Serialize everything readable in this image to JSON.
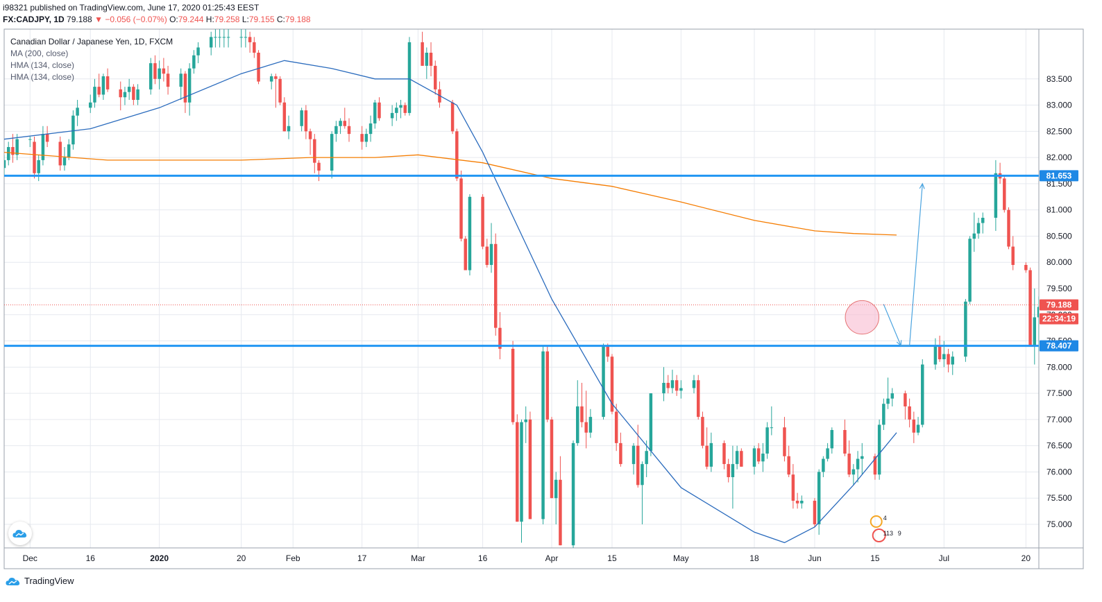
{
  "header": {
    "published_line": "i98321 published on TradingView.com, June 17, 2020 01:25:43 EEST",
    "symbol": "FX:CADJPY, 1D",
    "last": "79.188",
    "change": "−0.056 (−0.07%)",
    "open_label": "O:",
    "open": "79.244",
    "high_label": "H:",
    "high": "79.258",
    "low_label": "L:",
    "low": "79.155",
    "close_label": "C:",
    "close": "79.188"
  },
  "legend": {
    "title": "Canadian Dollar / Japanese Yen, 1D, FXCM",
    "indicators": [
      "MA (200, close)",
      "HMA (134, close)",
      "HMA (134, close)"
    ]
  },
  "footer": {
    "brand": "TradingView"
  },
  "badge": {
    "count_a": "4",
    "count_b": "113",
    "count_c": "9"
  },
  "colors": {
    "up": "#26a69a",
    "down": "#ef5350",
    "ma": "#f57c00",
    "hma": "#2a6bbd",
    "level": "#2196f3",
    "arrow": "#4aa3df",
    "circle_fill": "#f8bbd0",
    "circle_stroke": "#e57373",
    "grid": "#e6e9ef"
  },
  "chart_data": {
    "type": "candlestick",
    "timeframe": "1D",
    "y_range": [
      74.55,
      84.45
    ],
    "y_ticks": [
      75.0,
      75.5,
      76.0,
      76.5,
      77.0,
      77.5,
      78.0,
      78.5,
      79.0,
      79.5,
      80.0,
      80.5,
      81.0,
      81.5,
      82.0,
      82.5,
      83.0,
      83.5
    ],
    "y_tick_labels": [
      "75.000",
      "75.500",
      "76.000",
      "76.500",
      "77.000",
      "77.500",
      "78.000",
      "78.500",
      "79.000",
      "79.500",
      "80.000",
      "80.500",
      "81.000",
      "81.500",
      "82.000",
      "82.500",
      "83.000",
      "83.500"
    ],
    "x_labels": [
      "Dec",
      "16",
      "2020",
      "20",
      "Feb",
      "17",
      "Mar",
      "16",
      "Apr",
      "15",
      "May",
      "18",
      "Jun",
      "15",
      "Jul",
      "20"
    ],
    "x_label_dates": [
      "2019-12-02",
      "2019-12-16",
      "2020-01-01",
      "2020-01-20",
      "2020-02-01",
      "2020-02-17",
      "2020-03-01",
      "2020-03-16",
      "2020-04-01",
      "2020-04-15",
      "2020-05-01",
      "2020-05-18",
      "2020-06-01",
      "2020-06-15",
      "2020-07-01",
      "2020-07-20"
    ],
    "x_date_range": [
      "2019-11-26",
      "2020-07-23"
    ],
    "candles_start": "2019-11-26",
    "candles": [
      [
        81.8,
        82.05,
        81.65,
        81.95
      ],
      [
        81.95,
        82.3,
        81.85,
        82.2
      ],
      [
        82.2,
        82.45,
        81.9,
        82.05
      ],
      [
        82.05,
        82.45,
        81.95,
        82.35
      ],
      [
        82.35,
        82.4,
        82.2,
        82.35
      ],
      [
        82.3,
        82.4,
        81.6,
        81.7
      ],
      [
        81.7,
        82.05,
        81.55,
        81.95
      ],
      [
        81.95,
        82.6,
        81.85,
        82.45
      ],
      [
        82.45,
        82.6,
        82.2,
        82.3
      ],
      [
        82.3,
        82.4,
        81.75,
        81.85
      ],
      [
        81.85,
        82.2,
        81.75,
        82.0
      ],
      [
        82.0,
        82.35,
        81.95,
        82.25
      ],
      [
        82.25,
        82.9,
        82.15,
        82.8
      ],
      [
        82.8,
        83.1,
        82.6,
        82.95
      ],
      [
        82.95,
        83.2,
        82.85,
        83.05
      ],
      [
        83.05,
        83.5,
        82.95,
        83.35
      ],
      [
        83.35,
        83.6,
        83.15,
        83.2
      ],
      [
        83.2,
        83.6,
        83.1,
        83.55
      ],
      [
        83.55,
        83.7,
        83.25,
        83.3
      ],
      [
        83.3,
        83.45,
        82.9,
        83.15
      ],
      [
        83.15,
        83.35,
        83.0,
        83.25
      ],
      [
        83.25,
        83.5,
        83.1,
        83.35
      ],
      [
        83.35,
        83.4,
        83.0,
        83.1
      ],
      [
        83.1,
        83.4,
        83.0,
        83.3
      ],
      [
        83.3,
        83.9,
        83.2,
        83.8
      ],
      [
        83.8,
        83.95,
        83.4,
        83.5
      ],
      [
        83.5,
        83.85,
        83.3,
        83.7
      ],
      [
        83.7,
        83.9,
        83.45,
        83.6
      ],
      [
        83.6,
        83.75,
        83.2,
        83.35
      ],
      [
        83.35,
        83.7,
        83.1,
        83.6
      ],
      [
        83.6,
        83.65,
        82.85,
        83.05
      ],
      [
        83.05,
        83.8,
        82.8,
        83.7
      ],
      [
        83.7,
        84.05,
        83.6,
        83.95
      ],
      [
        83.95,
        84.2,
        83.8,
        84.1
      ],
      [
        84.1,
        84.4,
        83.95,
        84.3
      ],
      [
        84.3,
        84.5,
        84.1,
        84.3
      ],
      [
        84.3,
        84.5,
        84.1,
        84.3
      ],
      [
        84.3,
        84.5,
        84.1,
        84.3
      ],
      [
        84.3,
        84.5,
        84.1,
        84.3
      ],
      [
        84.3,
        84.5,
        84.1,
        84.3
      ],
      [
        84.3,
        84.5,
        84.1,
        84.3
      ],
      [
        84.3,
        84.4,
        84.0,
        84.2
      ],
      [
        84.2,
        84.3,
        83.9,
        84.0
      ],
      [
        84.0,
        84.05,
        83.4,
        83.45
      ],
      [
        83.45,
        83.6,
        83.3,
        83.55
      ],
      [
        83.55,
        83.6,
        82.95,
        83.5
      ],
      [
        83.5,
        83.55,
        83.0,
        83.05
      ],
      [
        83.05,
        83.15,
        82.5,
        82.5
      ],
      [
        82.5,
        82.8,
        82.35,
        82.6
      ],
      [
        82.6,
        82.95,
        82.5,
        82.9
      ],
      [
        82.9,
        83.0,
        82.35,
        82.5
      ],
      [
        82.5,
        82.55,
        82.05,
        82.35
      ],
      [
        82.35,
        82.45,
        81.7,
        81.9
      ],
      [
        81.9,
        81.95,
        81.55,
        81.75
      ],
      [
        81.75,
        82.5,
        81.6,
        82.45
      ],
      [
        82.45,
        82.7,
        82.3,
        82.6
      ],
      [
        82.6,
        82.75,
        82.45,
        82.7
      ],
      [
        82.7,
        82.95,
        82.55,
        82.6
      ],
      [
        82.6,
        82.75,
        82.3,
        82.45
      ],
      [
        82.45,
        82.6,
        82.15,
        82.3
      ],
      [
        82.3,
        82.55,
        82.2,
        82.45
      ],
      [
        82.45,
        82.8,
        82.3,
        82.65
      ],
      [
        82.65,
        83.1,
        82.55,
        83.05
      ],
      [
        83.05,
        83.15,
        82.7,
        82.75
      ],
      [
        82.75,
        83.0,
        82.6,
        82.85
      ],
      [
        82.85,
        83.05,
        82.7,
        82.95
      ],
      [
        82.95,
        83.1,
        82.75,
        83.0
      ],
      [
        83.0,
        83.05,
        82.8,
        82.85
      ],
      [
        82.85,
        84.3,
        82.8,
        84.2
      ],
      [
        84.2,
        84.4,
        83.75,
        83.75
      ],
      [
        83.75,
        84.1,
        83.5,
        84.0
      ],
      [
        84.0,
        84.2,
        83.55,
        83.75
      ],
      [
        83.75,
        83.85,
        83.2,
        83.3
      ],
      [
        83.3,
        83.45,
        82.95,
        83.05
      ],
      [
        83.05,
        83.1,
        82.45,
        82.5
      ],
      [
        82.5,
        82.55,
        81.55,
        81.6
      ],
      [
        81.6,
        81.75,
        80.4,
        80.45
      ],
      [
        80.45,
        80.5,
        79.9,
        79.85
      ],
      [
        79.85,
        81.3,
        79.75,
        81.25
      ],
      [
        81.25,
        81.3,
        80.25,
        80.3
      ],
      [
        80.3,
        80.45,
        79.9,
        79.95
      ],
      [
        79.95,
        80.75,
        79.8,
        80.35
      ],
      [
        80.35,
        80.55,
        78.6,
        78.75
      ],
      [
        78.75,
        79.05,
        78.15,
        78.35
      ],
      [
        78.35,
        78.5,
        76.9,
        76.95
      ],
      [
        76.95,
        77.1,
        75.05,
        75.05
      ],
      [
        75.05,
        77.0,
        74.65,
        76.95
      ],
      [
        76.95,
        77.25,
        76.55,
        77.0
      ],
      [
        77.0,
        77.15,
        75.1,
        75.1
      ],
      [
        75.1,
        78.4,
        75.0,
        78.3
      ],
      [
        78.3,
        78.4,
        76.95,
        77.0
      ],
      [
        77.0,
        77.05,
        75.5,
        75.5
      ],
      [
        75.5,
        76.0,
        75.0,
        75.85
      ],
      [
        75.85,
        76.3,
        74.6,
        74.6
      ],
      [
        74.6,
        76.6,
        74.5,
        76.55
      ],
      [
        76.55,
        77.75,
        76.5,
        77.25
      ],
      [
        77.25,
        77.7,
        76.85,
        76.95
      ],
      [
        76.95,
        77.55,
        76.45,
        76.75
      ],
      [
        76.75,
        77.2,
        76.65,
        77.05
      ],
      [
        77.05,
        78.45,
        77.0,
        78.4
      ],
      [
        78.4,
        78.45,
        78.1,
        78.2
      ],
      [
        78.2,
        78.25,
        77.1,
        77.15
      ],
      [
        77.15,
        77.3,
        76.4,
        76.55
      ],
      [
        76.55,
        76.75,
        76.1,
        76.15
      ],
      [
        76.15,
        76.55,
        75.95,
        76.5
      ],
      [
        76.5,
        76.9,
        75.7,
        75.75
      ],
      [
        75.75,
        76.2,
        75.0,
        76.15
      ],
      [
        76.15,
        76.6,
        75.9,
        76.4
      ],
      [
        76.4,
        77.5,
        76.3,
        77.5
      ],
      [
        77.5,
        78.0,
        77.35,
        77.7
      ],
      [
        77.7,
        77.85,
        77.5,
        77.6
      ],
      [
        77.6,
        77.95,
        77.5,
        77.75
      ],
      [
        77.75,
        77.85,
        77.45,
        77.55
      ],
      [
        77.55,
        77.75,
        77.4,
        77.6
      ],
      [
        77.6,
        77.85,
        77.5,
        77.75
      ],
      [
        77.75,
        77.85,
        77.0,
        77.05
      ],
      [
        77.05,
        77.15,
        76.45,
        76.5
      ],
      [
        76.5,
        76.85,
        76.05,
        76.1
      ],
      [
        76.1,
        76.75,
        76.0,
        76.55
      ],
      [
        76.55,
        76.6,
        76.05,
        76.15
      ],
      [
        76.15,
        76.25,
        75.8,
        75.9
      ],
      [
        75.9,
        76.5,
        75.3,
        76.15
      ],
      [
        76.15,
        76.5,
        76.05,
        76.4
      ],
      [
        76.4,
        76.45,
        76.1,
        76.1
      ],
      [
        76.1,
        76.5,
        75.95,
        76.45
      ],
      [
        76.45,
        76.55,
        76.15,
        76.2
      ],
      [
        76.2,
        76.55,
        76.0,
        76.35
      ],
      [
        76.35,
        76.95,
        76.25,
        76.85
      ],
      [
        76.85,
        77.25,
        76.7,
        76.85
      ],
      [
        76.85,
        77.05,
        76.2,
        76.3
      ],
      [
        76.3,
        76.5,
        75.9,
        75.95
      ],
      [
        75.95,
        76.15,
        75.3,
        75.45
      ],
      [
        75.45,
        75.6,
        75.3,
        75.4
      ],
      [
        75.4,
        75.55,
        75.3,
        75.45
      ],
      [
        75.45,
        75.5,
        74.95,
        75.0
      ],
      [
        75.0,
        76.05,
        74.8,
        76.0
      ],
      [
        76.0,
        76.3,
        75.9,
        76.25
      ],
      [
        76.25,
        76.55,
        76.2,
        76.45
      ],
      [
        76.45,
        76.85,
        76.35,
        76.8
      ],
      [
        76.8,
        77.0,
        76.3,
        76.35
      ],
      [
        76.35,
        76.6,
        75.9,
        75.95
      ],
      [
        75.95,
        76.15,
        75.75,
        76.05
      ],
      [
        76.05,
        76.4,
        75.8,
        76.25
      ],
      [
        76.25,
        76.55,
        75.95,
        76.3
      ],
      [
        76.3,
        76.35,
        75.85,
        75.95
      ],
      [
        75.95,
        77.0,
        75.85,
        76.9
      ],
      [
        76.9,
        77.4,
        76.8,
        77.3
      ],
      [
        77.3,
        77.8,
        77.2,
        77.4
      ],
      [
        77.4,
        77.6,
        77.25,
        77.5
      ],
      [
        77.5,
        77.55,
        77.0,
        77.25
      ],
      [
        77.25,
        77.4,
        76.85,
        77.0
      ],
      [
        77.0,
        77.15,
        76.55,
        76.75
      ],
      [
        76.75,
        77.05,
        76.7,
        76.9
      ],
      [
        76.9,
        78.15,
        76.85,
        78.05
      ],
      [
        78.05,
        78.55,
        77.95,
        78.4
      ],
      [
        78.4,
        78.6,
        78.1,
        78.15
      ],
      [
        78.15,
        78.5,
        78.0,
        78.25
      ],
      [
        78.25,
        78.35,
        77.9,
        78.05
      ],
      [
        78.05,
        78.3,
        77.85,
        78.2
      ],
      [
        78.2,
        79.3,
        78.1,
        79.25
      ],
      [
        79.25,
        80.5,
        79.2,
        80.45
      ],
      [
        80.45,
        80.95,
        80.2,
        80.55
      ],
      [
        80.55,
        80.85,
        80.45,
        80.75
      ],
      [
        80.75,
        80.95,
        80.55,
        80.85
      ],
      [
        80.85,
        81.95,
        80.6,
        81.7
      ],
      [
        81.7,
        81.9,
        81.5,
        81.6
      ],
      [
        81.6,
        81.65,
        80.95,
        81.0
      ],
      [
        81.0,
        81.05,
        80.25,
        80.3
      ],
      [
        80.3,
        80.5,
        79.85,
        79.95
      ],
      [
        79.95,
        80.0,
        79.8,
        79.85
      ],
      [
        79.85,
        79.9,
        78.4,
        78.4
      ],
      [
        78.4,
        79.5,
        78.05,
        78.95
      ],
      [
        78.95,
        79.35,
        78.3,
        79.15
      ],
      [
        79.15,
        79.6,
        78.75,
        79.45
      ],
      [
        79.45,
        79.7,
        79.3,
        79.4
      ],
      [
        79.4,
        79.45,
        79.05,
        79.188
      ]
    ],
    "ma_200": {
      "name": "MA (200, close)",
      "points": [
        [
          "2019-11-26",
          82.1
        ],
        [
          "2019-12-20",
          81.95
        ],
        [
          "2020-01-20",
          81.95
        ],
        [
          "2020-02-05",
          82.0
        ],
        [
          "2020-02-20",
          82.0
        ],
        [
          "2020-03-01",
          82.05
        ],
        [
          "2020-03-16",
          81.9
        ],
        [
          "2020-04-01",
          81.6
        ],
        [
          "2020-04-15",
          81.45
        ],
        [
          "2020-05-01",
          81.15
        ],
        [
          "2020-05-18",
          80.8
        ],
        [
          "2020-06-01",
          80.6
        ],
        [
          "2020-06-10",
          80.55
        ],
        [
          "2020-06-20",
          80.52
        ]
      ]
    },
    "hma_1": {
      "name": "HMA (134, close)",
      "points": [
        [
          "2019-11-26",
          82.35
        ],
        [
          "2019-12-16",
          82.55
        ],
        [
          "2020-01-01",
          82.95
        ],
        [
          "2020-01-20",
          83.6
        ],
        [
          "2020-01-30",
          83.85
        ],
        [
          "2020-02-10",
          83.7
        ],
        [
          "2020-02-20",
          83.5
        ],
        [
          "2020-02-28",
          83.5
        ],
        [
          "2020-03-10",
          83.0
        ],
        [
          "2020-03-16",
          82.1
        ],
        [
          "2020-04-01",
          79.3
        ],
        [
          "2020-04-15",
          77.3
        ],
        [
          "2020-05-01",
          75.7
        ],
        [
          "2020-05-18",
          74.85
        ],
        [
          "2020-05-25",
          74.65
        ],
        [
          "2020-06-01",
          74.95
        ],
        [
          "2020-06-10",
          75.75
        ],
        [
          "2020-06-20",
          76.75
        ]
      ]
    },
    "hma_2": {
      "name": "HMA (134, close)",
      "points": []
    },
    "levels": [
      {
        "price": 81.653,
        "label": "81.653"
      },
      {
        "price": 78.407,
        "label": "78.407"
      }
    ],
    "last_price": {
      "price": 79.188,
      "label": "79.188",
      "countdown": "22:34:19"
    },
    "projection": [
      [
        "2020-06-17",
        79.2
      ],
      [
        "2020-06-21",
        78.41
      ],
      [
        "2020-06-23",
        78.41
      ],
      [
        "2020-06-26",
        81.5
      ]
    ],
    "circle": {
      "date": "2020-06-12",
      "price": 78.95,
      "radius_days": 3.9
    },
    "grid": true
  }
}
